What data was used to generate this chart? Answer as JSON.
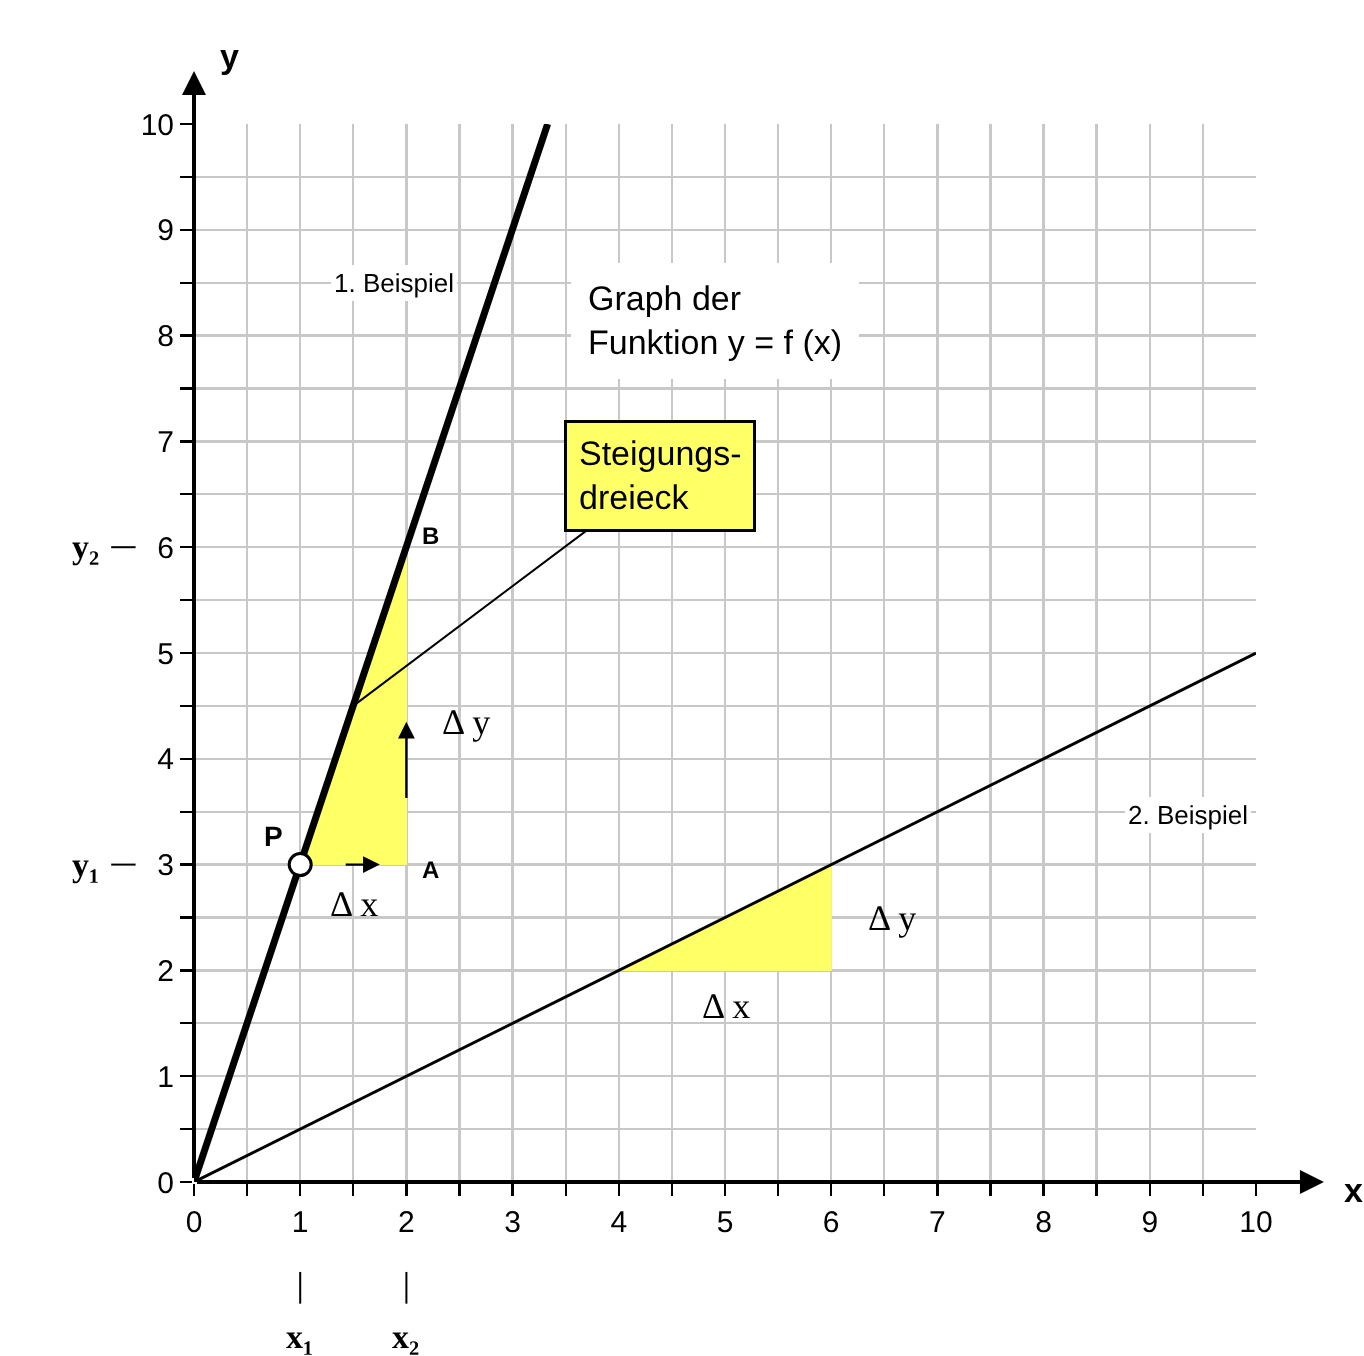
{
  "chart_data": {
    "type": "line",
    "title": "Graph der\nFunktion y = f (x)",
    "xlabel": "x",
    "ylabel": "y",
    "xlim": [
      0,
      10
    ],
    "ylim": [
      0,
      10
    ],
    "xticks": [
      0,
      {
        "value": 0.5,
        "label": null
      },
      1,
      {
        "value": 1.5,
        "label": null
      },
      2,
      {
        "value": 2.5,
        "label": null
      },
      3,
      {
        "value": 3.5,
        "label": null
      },
      4,
      {
        "value": 4.5,
        "label": null
      },
      5,
      {
        "value": 5.5,
        "label": null
      },
      6,
      {
        "value": 6.5,
        "label": null
      },
      7,
      {
        "value": 7.5,
        "label": null
      },
      8,
      {
        "value": 8.5,
        "label": null
      },
      9,
      {
        "value": 9.5,
        "label": null
      },
      10
    ],
    "yticks": [
      0,
      {
        "value": 0.5,
        "label": null
      },
      1,
      {
        "value": 1.5,
        "label": null
      },
      2,
      {
        "value": 2.5,
        "label": null
      },
      3,
      {
        "value": 3.5,
        "label": null
      },
      4,
      {
        "value": 4.5,
        "label": null
      },
      5,
      {
        "value": 5.5,
        "label": null
      },
      6,
      {
        "value": 6.5,
        "label": null
      },
      7,
      {
        "value": 7.5,
        "label": null
      },
      8,
      {
        "value": 8.5,
        "label": null
      },
      9,
      {
        "value": 9.5,
        "label": null
      },
      10
    ],
    "grid": true,
    "series": [
      {
        "type": "area",
        "x": [
          1,
          2,
          2,
          1
        ],
        "values": [
          3,
          3,
          6,
          3
        ],
        "color": "#ffff66"
      },
      {
        "type": "area",
        "x": [
          4,
          6,
          6,
          4
        ],
        "values": [
          2,
          2,
          3,
          2
        ],
        "color": "#ffff66"
      },
      {
        "name": "1. Beispiel",
        "x": [
          0,
          3.33
        ],
        "values": [
          0,
          10
        ],
        "color": "#000000",
        "marker": "none"
      },
      {
        "name": "2. Beispiel",
        "x": [
          0,
          10
        ],
        "values": [
          0,
          5
        ],
        "color": "#000000",
        "marker": "none"
      },
      {
        "type": "scatter",
        "x": [
          1
        ],
        "values": [
          3
        ],
        "color": "#ffffff",
        "marker": "circle"
      }
    ],
    "annotations": [
      {
        "text": "P",
        "x": 1,
        "y": 3
      },
      {
        "text": "A",
        "x": 2,
        "y": 3
      },
      {
        "text": "B",
        "x": 2,
        "y": 6
      },
      {
        "text": "Δ y",
        "x": 2,
        "y": 4.5
      },
      {
        "text": "Δ x",
        "x": 1.5,
        "y": 3
      },
      {
        "text": "Δ y",
        "x": 6,
        "y": 2.5
      },
      {
        "text": "Δ x",
        "x": 5,
        "y": 2
      },
      {
        "text": "Steigungs-\ndreieck",
        "x": 1.5,
        "y": 4.5
      },
      "x₁",
      "x₂",
      "y₁",
      "y₂"
    ]
  }
}
